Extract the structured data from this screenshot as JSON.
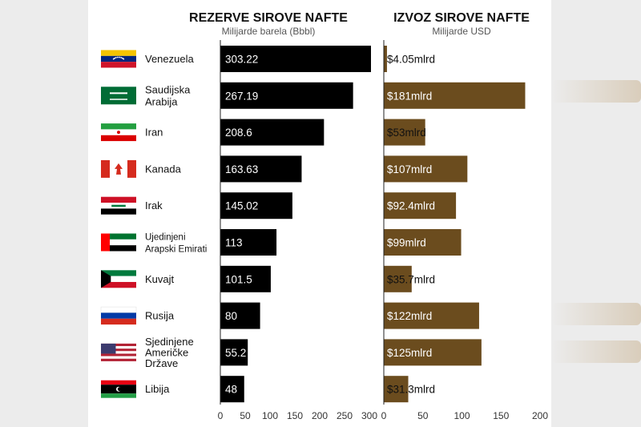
{
  "chart_data": [
    {
      "type": "bar",
      "orientation": "horizontal",
      "title": "REZERVE SIROVE NAFTE",
      "subtitle": "Milijarde barela (Bbbl)",
      "categories": [
        "Venezuela",
        "Saudijska Arabija",
        "Iran",
        "Kanada",
        "Irak",
        "Ujedinjeni Arapski Emirati",
        "Kuvajt",
        "Rusija",
        "Sjedinjene Američke Države",
        "Libija"
      ],
      "values": [
        303.22,
        267.19,
        208.6,
        163.63,
        145.02,
        113,
        101.5,
        80,
        55.2,
        48
      ],
      "value_labels": [
        "303.22",
        "267.19",
        "208.6",
        "163.63",
        "145.02",
        "113",
        "101.5",
        "80",
        "55.2",
        "48"
      ],
      "xlim": [
        0,
        330
      ],
      "ticks": [
        0,
        50,
        100,
        150,
        200,
        250,
        300
      ],
      "bar_color": "#000000"
    },
    {
      "type": "bar",
      "orientation": "horizontal",
      "title": "IZVOZ SIROVE NAFTE",
      "subtitle": "Milijarde USD",
      "categories": [
        "Venezuela",
        "Saudijska Arabija",
        "Iran",
        "Kanada",
        "Irak",
        "Ujedinjeni Arapski Emirati",
        "Kuvajt",
        "Rusija",
        "Sjedinjene Američke Države",
        "Libija"
      ],
      "values": [
        4.05,
        181,
        53,
        107,
        92.4,
        99,
        35.7,
        122,
        125,
        31.3
      ],
      "value_labels": [
        "$4.05mlrd",
        "$181mlrd",
        "$53mlrd",
        "$107mlrd",
        "$92.4mlrd",
        "$99mlrd",
        "$35.7mlrd",
        "$122mlrd",
        "$125mlrd",
        "$31.3mlrd"
      ],
      "xlim": [
        0,
        200
      ],
      "ticks": [
        0,
        50,
        100,
        150,
        200
      ],
      "bar_color": "#6b4c1e"
    }
  ],
  "countries": [
    {
      "lines": [
        "Venezuela"
      ],
      "flag": "venezuela-flag-icon"
    },
    {
      "lines": [
        "Saudijska",
        "Arabija"
      ],
      "flag": "saudi-arabia-flag-icon"
    },
    {
      "lines": [
        "Iran"
      ],
      "flag": "iran-flag-icon"
    },
    {
      "lines": [
        "Kanada"
      ],
      "flag": "canada-flag-icon"
    },
    {
      "lines": [
        "Irak"
      ],
      "flag": "iraq-flag-icon"
    },
    {
      "lines": [
        "Ujedinjeni",
        "Arapski Emirati"
      ],
      "flag": "uae-flag-icon"
    },
    {
      "lines": [
        "Kuvajt"
      ],
      "flag": "kuwait-flag-icon"
    },
    {
      "lines": [
        "Rusija"
      ],
      "flag": "russia-flag-icon"
    },
    {
      "lines": [
        "Sjedinjene",
        "Američke",
        "Države"
      ],
      "flag": "usa-flag-icon"
    },
    {
      "lines": [
        "Libija"
      ],
      "flag": "libya-flag-icon"
    }
  ]
}
